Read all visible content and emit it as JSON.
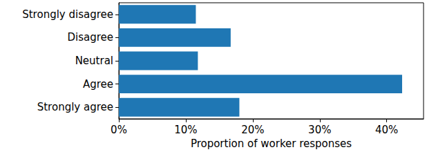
{
  "chart_data": {
    "type": "bar",
    "orientation": "horizontal",
    "xlabel": "Proportion of worker responses",
    "categories": [
      "Strongly disagree",
      "Disagree",
      "Neutral",
      "Agree",
      "Strongly agree"
    ],
    "values": [
      11.5,
      16.7,
      11.8,
      42.3,
      18.0
    ],
    "color": "#1f77b4",
    "xlim": [
      0,
      45.5
    ],
    "xticks": [
      {
        "value": 0,
        "label": "0%"
      },
      {
        "value": 10,
        "label": "10%"
      },
      {
        "value": 20,
        "label": "20%"
      },
      {
        "value": 30,
        "label": "30%"
      },
      {
        "value": 40,
        "label": "40%"
      }
    ],
    "grid": false
  }
}
